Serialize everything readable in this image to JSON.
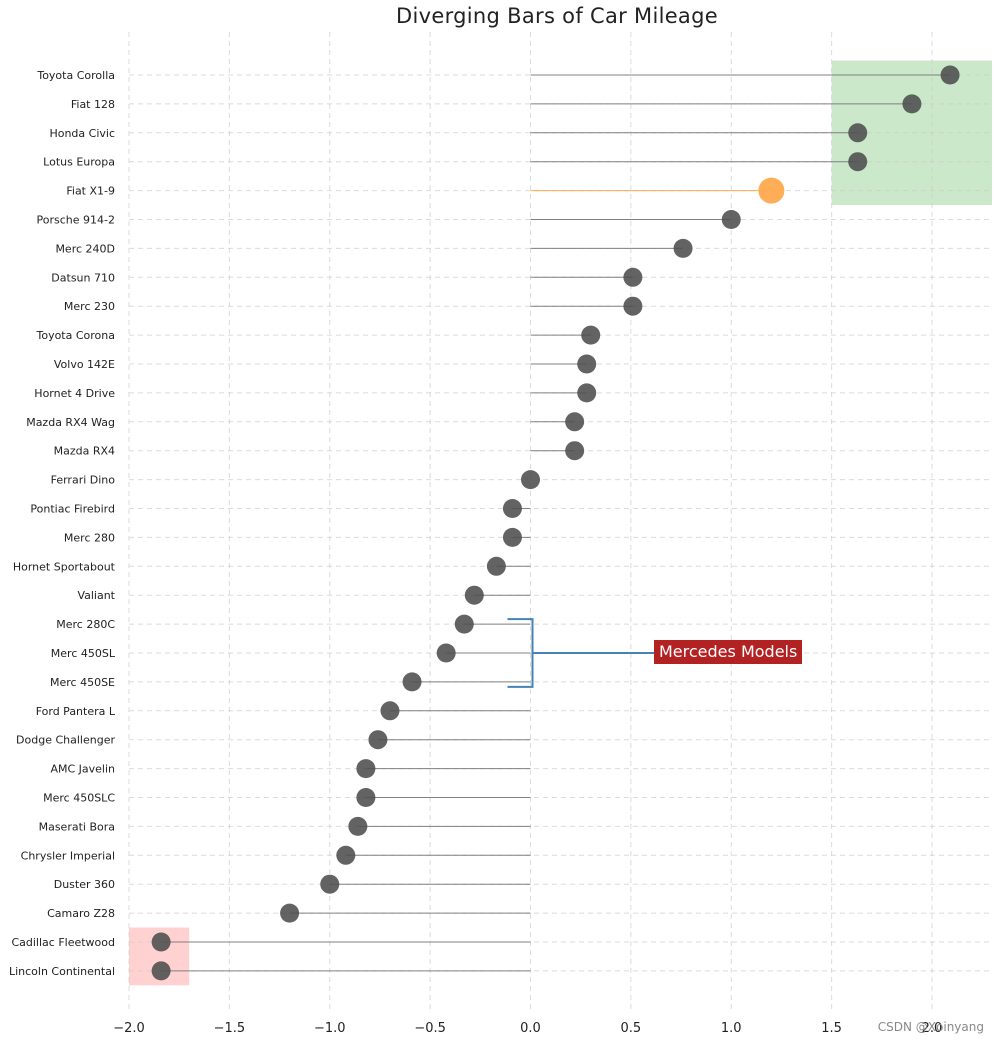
{
  "chart_data": {
    "type": "lollipop",
    "title": "Diverging Bars of Car Mileage",
    "xlim": [
      -2.0,
      2.3
    ],
    "xticks": [
      -2.0,
      -1.5,
      -1.0,
      -0.5,
      0.0,
      0.5,
      1.0,
      1.5,
      2.0
    ],
    "xtick_labels": [
      "−2.0",
      "−1.5",
      "−1.0",
      "−0.5",
      "0.0",
      "0.5",
      "1.0",
      "1.5",
      "2.0"
    ],
    "grid": true,
    "categories": [
      "Toyota Corolla",
      "Fiat 128",
      "Honda Civic",
      "Lotus Europa",
      "Fiat X1-9",
      "Porsche 914-2",
      "Merc 240D",
      "Datsun 710",
      "Merc 230",
      "Toyota Corona",
      "Volvo 142E",
      "Hornet 4 Drive",
      "Mazda RX4 Wag",
      "Mazda RX4",
      "Ferrari Dino",
      "Pontiac Firebird",
      "Merc 280",
      "Hornet Sportabout",
      "Valiant",
      "Merc 280C",
      "Merc 450SL",
      "Merc 450SE",
      "Ford Pantera L",
      "Dodge Challenger",
      "AMC Javelin",
      "Merc 450SLC",
      "Maserati Bora",
      "Chrysler Imperial",
      "Duster 360",
      "Camaro Z28",
      "Cadillac Fleetwood",
      "Lincoln Continental"
    ],
    "values": [
      2.09,
      1.9,
      1.63,
      1.63,
      1.2,
      1.0,
      0.76,
      0.51,
      0.51,
      0.3,
      0.28,
      0.28,
      0.22,
      0.22,
      0.0,
      -0.09,
      -0.09,
      -0.17,
      -0.28,
      -0.33,
      -0.42,
      -0.59,
      -0.7,
      -0.76,
      -0.82,
      -0.82,
      -0.86,
      -0.92,
      -1.0,
      -1.2,
      -1.84,
      -1.84
    ],
    "highlight": {
      "category": "Fiat X1-9",
      "color": "#ffa94d"
    },
    "colors": {
      "point": "#4d4d4d",
      "line": "#808080",
      "green_region": "#a9d8a9",
      "red_region": "#ffb3b3"
    },
    "regions": [
      {
        "x": [
          1.5,
          2.3
        ],
        "categories": [
          "Toyota Corolla",
          "Fiat X1-9"
        ],
        "color": "green"
      },
      {
        "x": [
          -2.0,
          -1.7
        ],
        "categories": [
          "Cadillac Fleetwood",
          "Lincoln Continental"
        ],
        "color": "red"
      }
    ],
    "annotation": {
      "text": "Mercedes Models",
      "categories": [
        "Merc 280C",
        "Merc 450SE"
      ],
      "bg": "#b22222",
      "bracket_color": "#4682b4"
    }
  },
  "watermark": "CSDN @Xoinyang"
}
